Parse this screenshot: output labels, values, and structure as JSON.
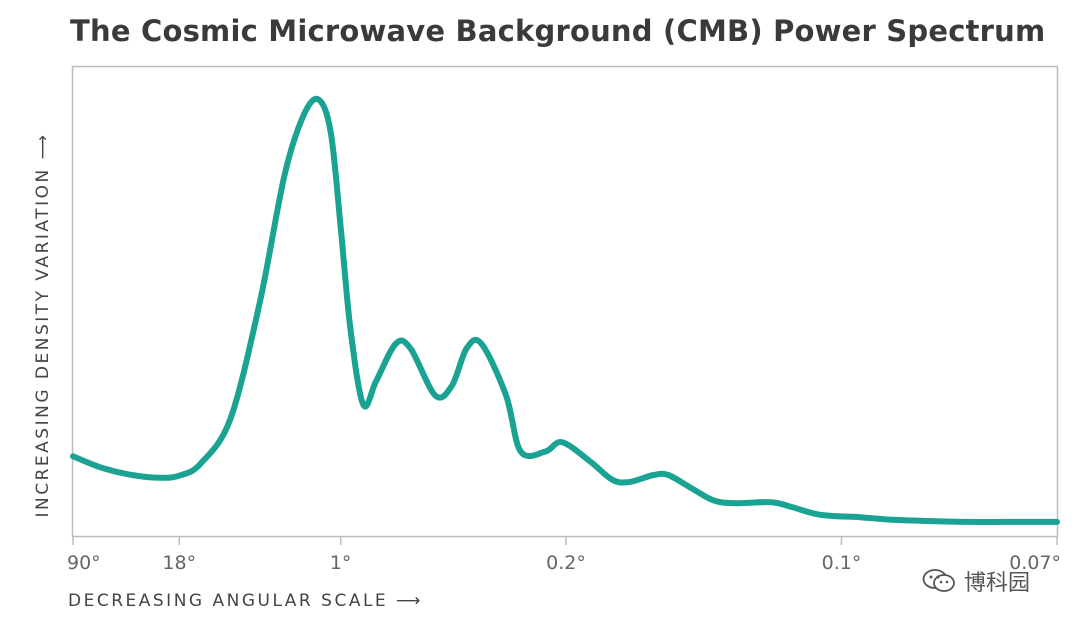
{
  "watermark": {
    "text": "博科园",
    "icon": "wechat-icon"
  },
  "colors": {
    "curve": "#1aa393",
    "frame": "#bdbdbd",
    "tick_label": "#666666"
  },
  "chart_data": {
    "type": "line",
    "title": "The Cosmic Microwave Background (CMB) Power Spectrum",
    "xlabel": "DECREASING ANGULAR SCALE ⟶",
    "ylabel": "INCREASING DENSITY VARIATION ⟶",
    "x_ticks": [
      {
        "label": "90°",
        "position": 0.0
      },
      {
        "label": "18°",
        "position": 0.108
      },
      {
        "label": "1°",
        "position": 0.272
      },
      {
        "label": "0.2°",
        "position": 0.501
      },
      {
        "label": "0.1°",
        "position": 0.781
      },
      {
        "label": "0.07°",
        "position": 1.0
      }
    ],
    "xlim": [
      0,
      1
    ],
    "ylim": [
      0,
      1
    ],
    "grid": false,
    "series": [
      {
        "name": "CMB power spectrum",
        "x": [
          0.0,
          0.03,
          0.06,
          0.09,
          0.11,
          0.13,
          0.16,
          0.19,
          0.215,
          0.235,
          0.25,
          0.262,
          0.272,
          0.282,
          0.295,
          0.308,
          0.328,
          0.343,
          0.368,
          0.385,
          0.4,
          0.415,
          0.44,
          0.455,
          0.48,
          0.497,
          0.525,
          0.548,
          0.565,
          0.59,
          0.605,
          0.63,
          0.652,
          0.675,
          0.71,
          0.73,
          0.76,
          0.8,
          0.83,
          0.87,
          0.91,
          0.95,
          1.0
        ],
        "y": [
          0.17,
          0.145,
          0.13,
          0.124,
          0.13,
          0.155,
          0.25,
          0.5,
          0.77,
          0.9,
          0.93,
          0.86,
          0.66,
          0.44,
          0.28,
          0.33,
          0.41,
          0.4,
          0.3,
          0.32,
          0.4,
          0.41,
          0.3,
          0.18,
          0.18,
          0.2,
          0.16,
          0.12,
          0.115,
          0.13,
          0.13,
          0.1,
          0.075,
          0.07,
          0.072,
          0.062,
          0.045,
          0.04,
          0.035,
          0.032,
          0.03,
          0.03,
          0.03
        ]
      }
    ]
  }
}
